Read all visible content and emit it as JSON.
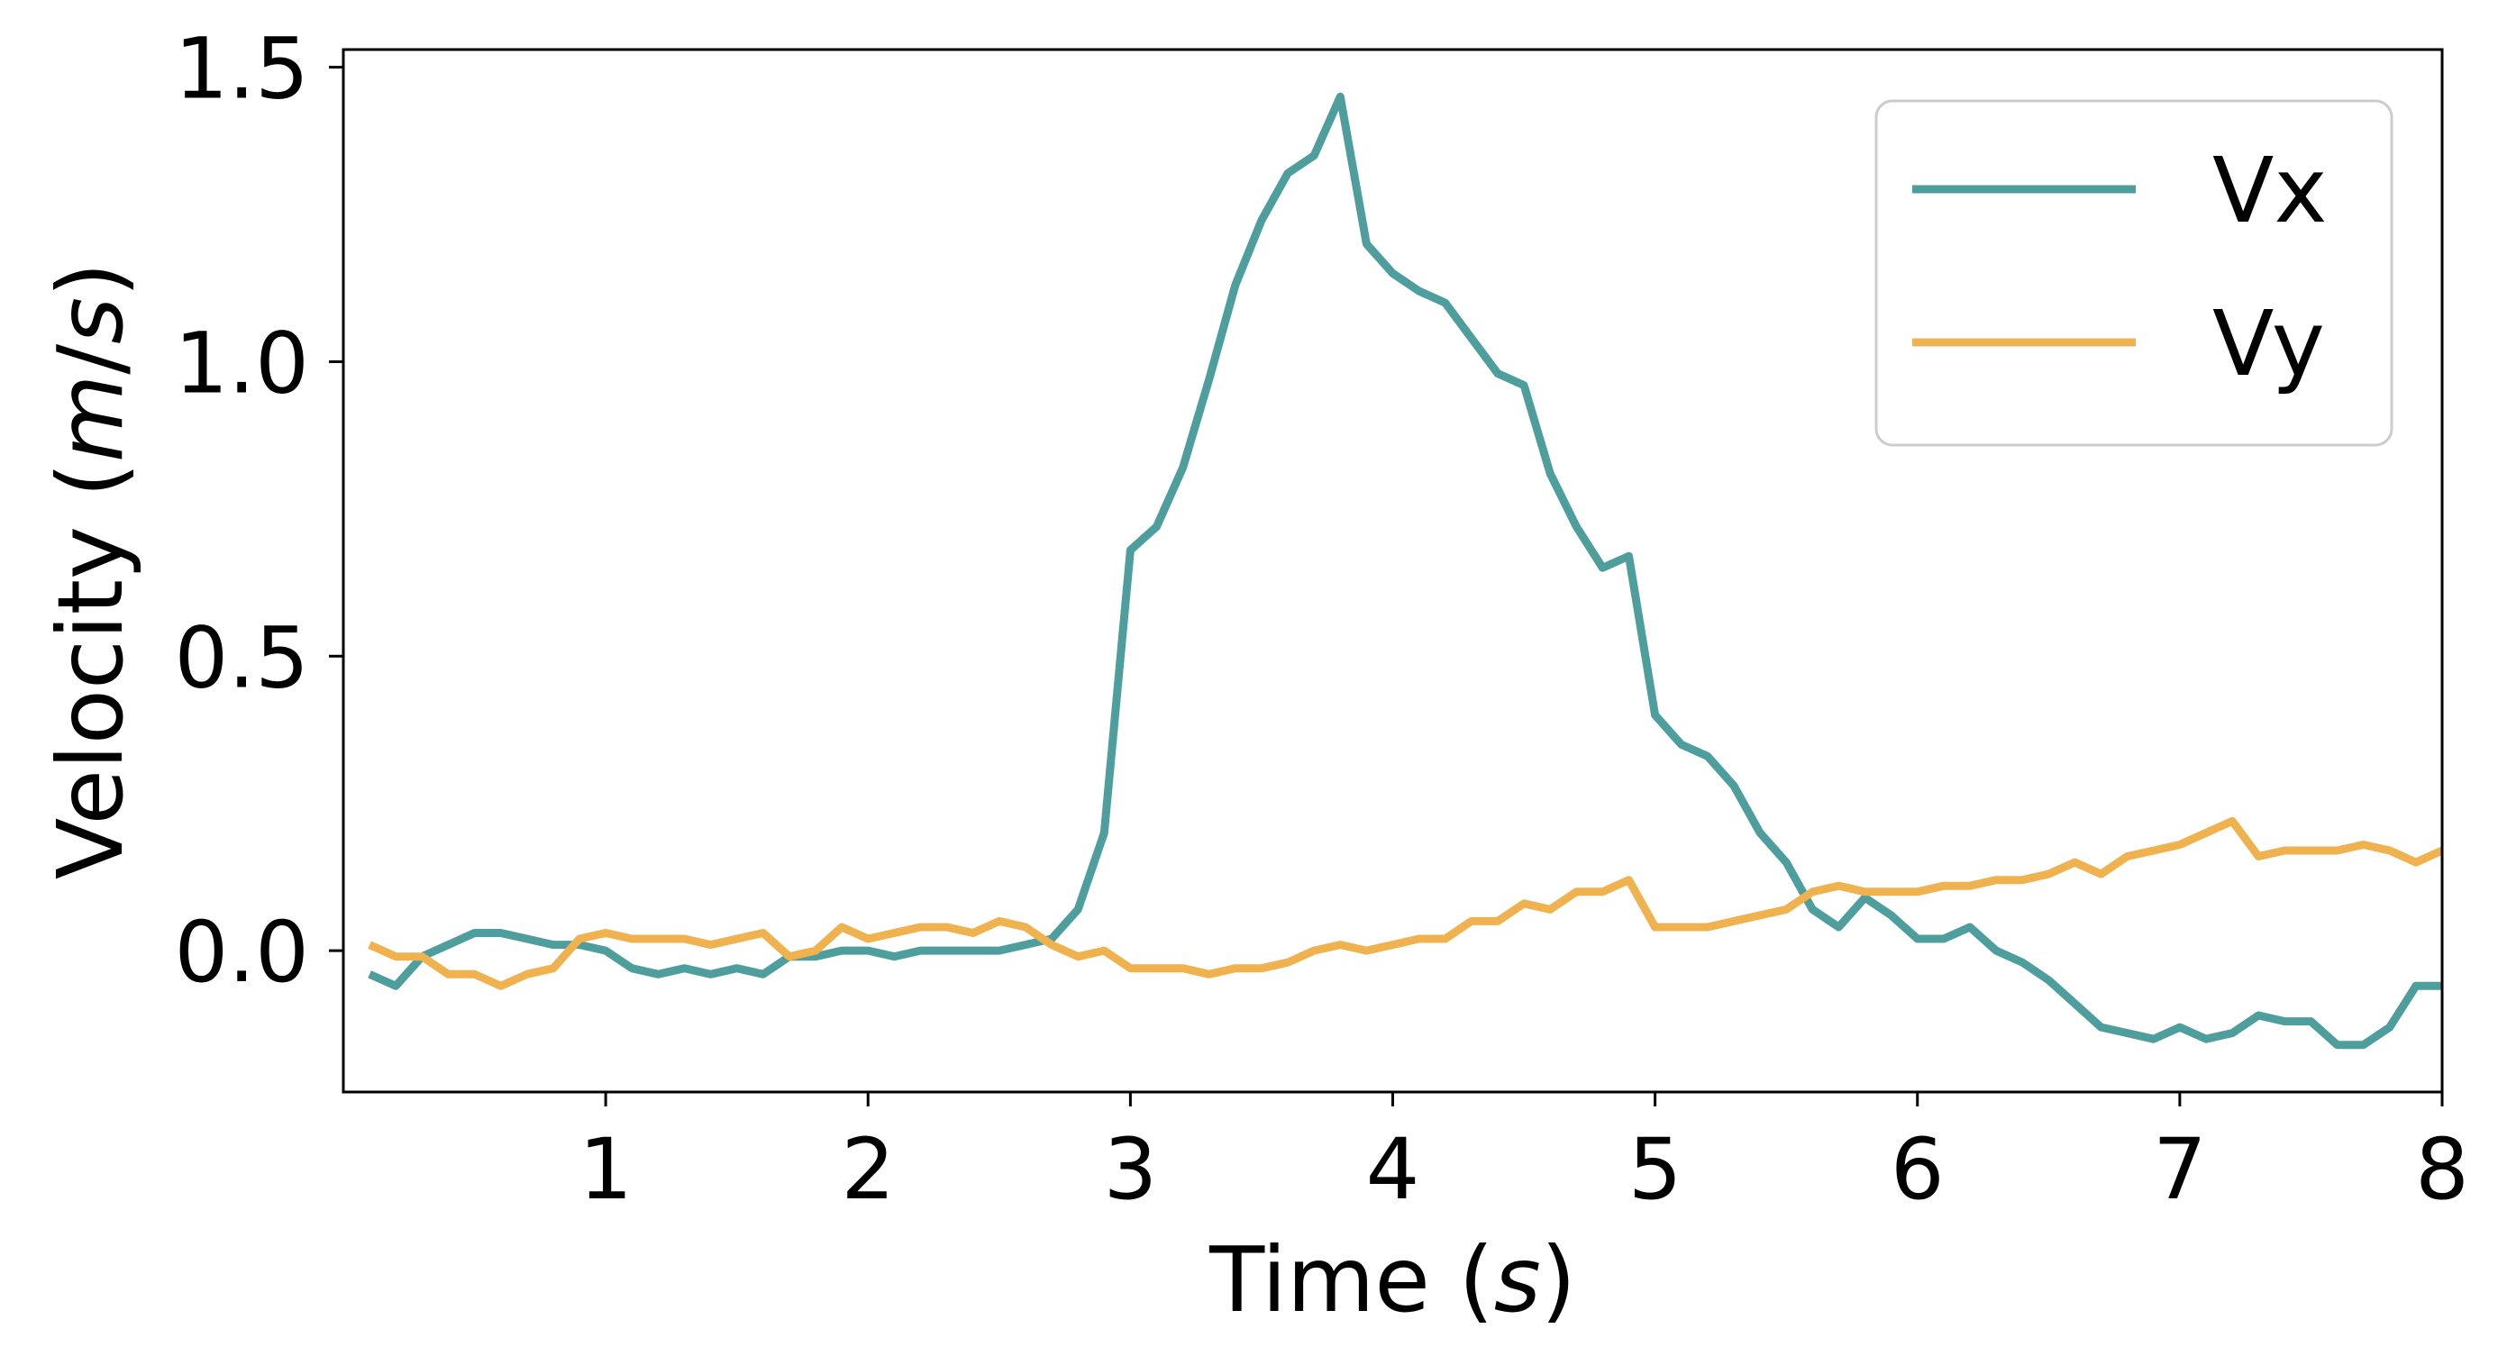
{
  "chart_data": {
    "type": "line",
    "xlabel": "Time (s)",
    "xlabel_parts": [
      "Time (",
      "s",
      ")"
    ],
    "ylabel": "Velocity (m/s)",
    "ylabel_parts": [
      "Velocity (",
      "m",
      "/",
      "s",
      ")"
    ],
    "xlim": [
      0,
      8
    ],
    "ylim": [
      -0.24,
      1.53
    ],
    "x_ticks": [
      1,
      2,
      3,
      4,
      5,
      6,
      7,
      8
    ],
    "x_tick_labels": [
      "1",
      "2",
      "3",
      "4",
      "5",
      "6",
      "7",
      "8"
    ],
    "y_ticks": [
      0.0,
      0.5,
      1.0,
      1.5
    ],
    "y_tick_labels": [
      "0.0",
      "0.5",
      "1.0",
      "1.5"
    ],
    "grid": false,
    "legend_position": "top-right",
    "colors": {
      "Vx": "#4f9e9e",
      "Vy": "#f0b24e",
      "axis": "#000000",
      "legend_border": "#cccccc"
    },
    "x": [
      0.1,
      0.2,
      0.3,
      0.4,
      0.5,
      0.6,
      0.7,
      0.8,
      0.9,
      1.0,
      1.1,
      1.2,
      1.3,
      1.4,
      1.5,
      1.6,
      1.7,
      1.8,
      1.9,
      2.0,
      2.1,
      2.2,
      2.3,
      2.4,
      2.5,
      2.6,
      2.7,
      2.8,
      2.9,
      3.0,
      3.1,
      3.2,
      3.3,
      3.4,
      3.5,
      3.6,
      3.7,
      3.8,
      3.9,
      4.0,
      4.1,
      4.2,
      4.3,
      4.4,
      4.5,
      4.6,
      4.7,
      4.8,
      4.9,
      5.0,
      5.1,
      5.2,
      5.3,
      5.4,
      5.5,
      5.6,
      5.7,
      5.8,
      5.9,
      6.0,
      6.1,
      6.2,
      6.3,
      6.4,
      6.5,
      6.6,
      6.7,
      6.8,
      6.9,
      7.0,
      7.1,
      7.2,
      7.3,
      7.4,
      7.5,
      7.6,
      7.7,
      7.8,
      7.9,
      8.0
    ],
    "series": [
      {
        "name": "Vx",
        "values": [
          -0.04,
          -0.06,
          -0.01,
          0.01,
          0.03,
          0.03,
          0.02,
          0.01,
          0.01,
          0.0,
          -0.03,
          -0.04,
          -0.03,
          -0.04,
          -0.03,
          -0.04,
          -0.01,
          -0.01,
          0.0,
          0.0,
          -0.01,
          0.0,
          0.0,
          0.0,
          0.0,
          0.01,
          0.02,
          0.07,
          0.2,
          0.68,
          0.72,
          0.82,
          0.97,
          1.13,
          1.24,
          1.32,
          1.35,
          1.45,
          1.2,
          1.15,
          1.12,
          1.1,
          1.04,
          0.98,
          0.96,
          0.81,
          0.72,
          0.65,
          0.67,
          0.4,
          0.35,
          0.33,
          0.28,
          0.2,
          0.15,
          0.07,
          0.04,
          0.09,
          0.06,
          0.02,
          0.02,
          0.04,
          0.0,
          -0.02,
          -0.05,
          -0.09,
          -0.13,
          -0.14,
          -0.15,
          -0.13,
          -0.15,
          -0.14,
          -0.11,
          -0.12,
          -0.12,
          -0.16,
          -0.16,
          -0.13,
          -0.06,
          -0.06
        ]
      },
      {
        "name": "Vy",
        "values": [
          0.01,
          -0.01,
          -0.01,
          -0.04,
          -0.04,
          -0.06,
          -0.04,
          -0.03,
          0.02,
          0.03,
          0.02,
          0.02,
          0.02,
          0.01,
          0.02,
          0.03,
          -0.01,
          0.0,
          0.04,
          0.02,
          0.03,
          0.04,
          0.04,
          0.03,
          0.05,
          0.04,
          0.01,
          -0.01,
          0.0,
          -0.03,
          -0.03,
          -0.03,
          -0.04,
          -0.03,
          -0.03,
          -0.02,
          0.0,
          0.01,
          0.0,
          0.01,
          0.02,
          0.02,
          0.05,
          0.05,
          0.08,
          0.07,
          0.1,
          0.1,
          0.12,
          0.04,
          0.04,
          0.04,
          0.05,
          0.06,
          0.07,
          0.1,
          0.11,
          0.1,
          0.1,
          0.1,
          0.11,
          0.11,
          0.12,
          0.12,
          0.13,
          0.15,
          0.13,
          0.16,
          0.17,
          0.18,
          0.2,
          0.22,
          0.16,
          0.17,
          0.17,
          0.17,
          0.18,
          0.17,
          0.15,
          0.17
        ]
      }
    ]
  }
}
